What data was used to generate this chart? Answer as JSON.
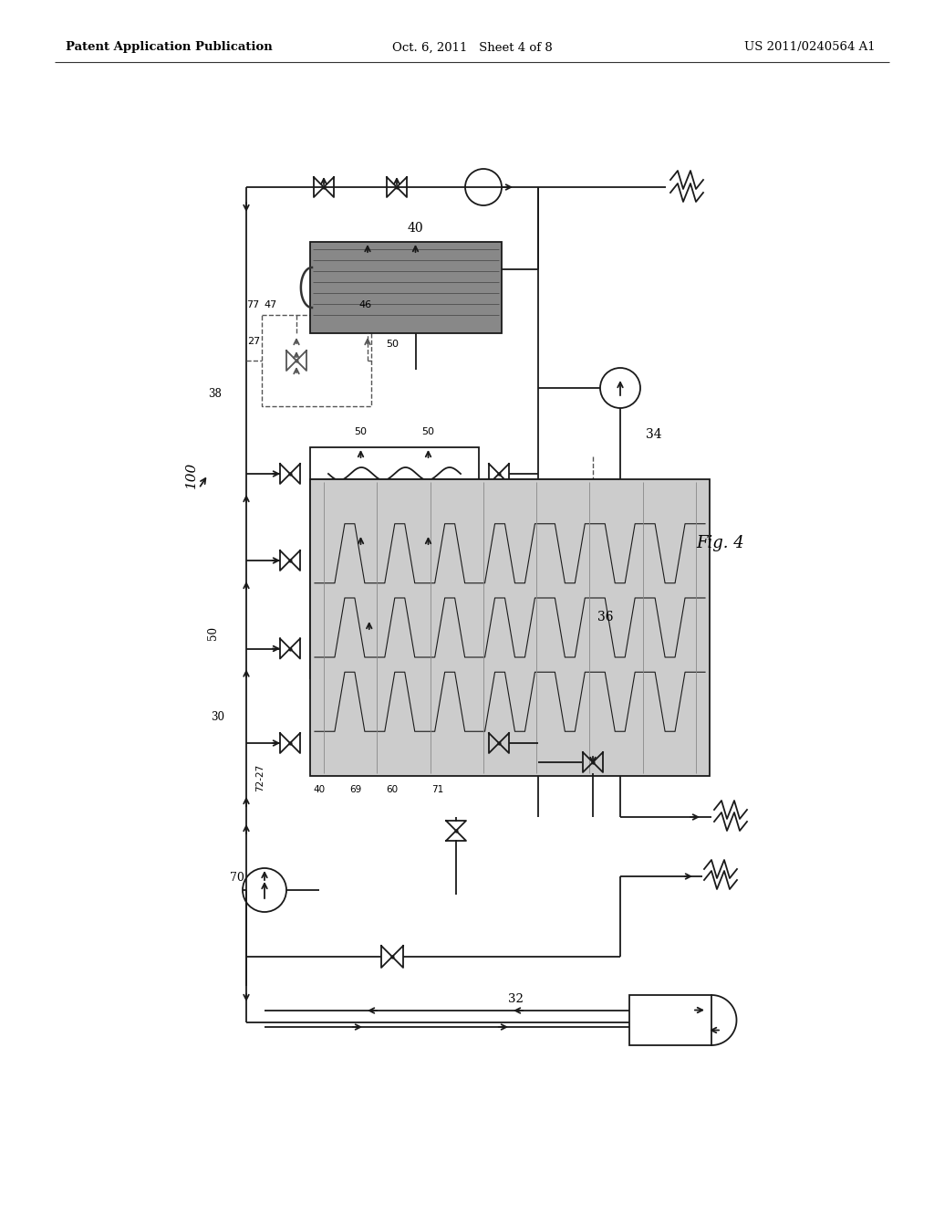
{
  "bg_color": "#ffffff",
  "line_color": "#1a1a1a",
  "dashed_color": "#555555",
  "header_left": "Patent Application Publication",
  "header_mid": "Oct. 6, 2011   Sheet 4 of 8",
  "header_right": "US 2011/0240564 A1",
  "fig_label": "Fig. 4"
}
